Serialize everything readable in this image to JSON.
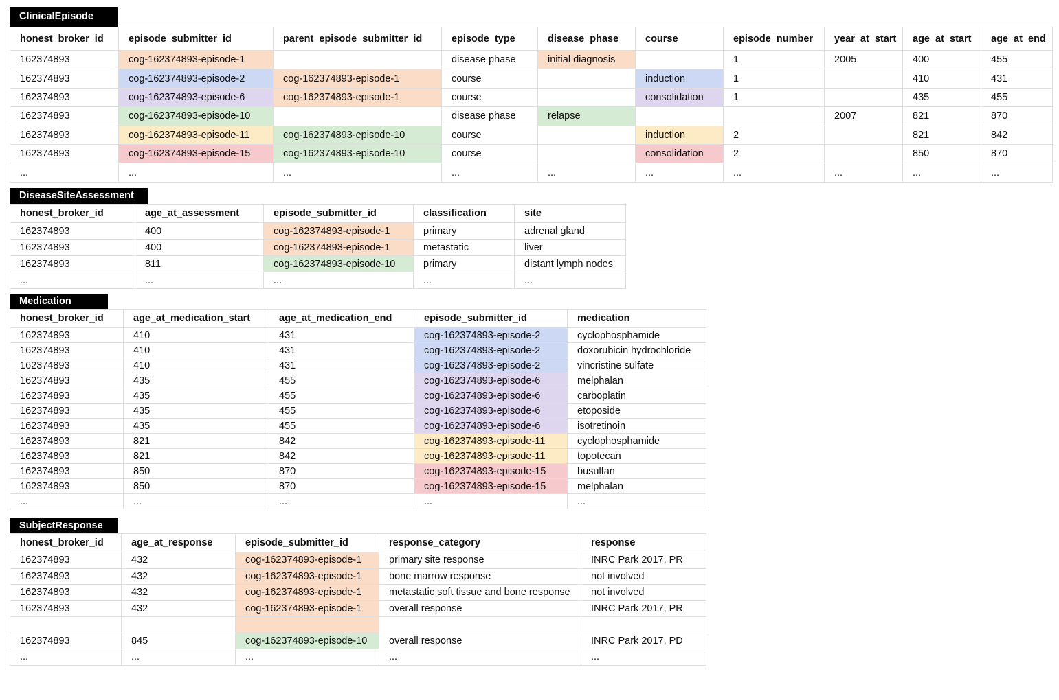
{
  "colors": {
    "orange": "#fbdcc6",
    "blue": "#cdd9f4",
    "purple": "#ddd6ee",
    "green": "#d6ebd3",
    "yellow": "#fcebc5",
    "red": "#f6cacc"
  },
  "tables": [
    {
      "name": "ClinicalEpisode",
      "columns": [
        "honest_broker_id",
        "episode_submitter_id",
        "parent_episode_submitter_id",
        "episode_type",
        "disease_phase",
        "course",
        "episode_number",
        "year_at_start",
        "age_at_start",
        "age_at_end"
      ],
      "rows": [
        [
          "162374893",
          "cog-162374893-episode-1",
          "",
          "disease phase",
          "initial diagnosis",
          "",
          "1",
          "2005",
          "400",
          "455"
        ],
        [
          "162374893",
          "cog-162374893-episode-2",
          "cog-162374893-episode-1",
          "course",
          "",
          "induction",
          "1",
          "",
          "410",
          "431"
        ],
        [
          "162374893",
          "cog-162374893-episode-6",
          "cog-162374893-episode-1",
          "course",
          "",
          "consolidation",
          "1",
          "",
          "435",
          "455"
        ],
        [
          "162374893",
          "cog-162374893-episode-10",
          "",
          "disease phase",
          "relapse",
          "",
          "",
          "2007",
          "821",
          "870"
        ],
        [
          "162374893",
          "cog-162374893-episode-11",
          "cog-162374893-episode-10",
          "course",
          "",
          "induction",
          "2",
          "",
          "821",
          "842"
        ],
        [
          "162374893",
          "cog-162374893-episode-15",
          "cog-162374893-episode-10",
          "course",
          "",
          "consolidation",
          "2",
          "",
          "850",
          "870"
        ],
        [
          "...",
          "...",
          "...",
          "...",
          "...",
          "...",
          "...",
          "...",
          "...",
          "..."
        ]
      ],
      "highlights": [
        [
          "",
          "orange",
          "",
          "",
          "orange",
          "",
          "",
          "",
          "",
          ""
        ],
        [
          "",
          "blue",
          "orange",
          "",
          "",
          "blue",
          "",
          "",
          "",
          ""
        ],
        [
          "",
          "purple",
          "orange",
          "",
          "",
          "purple",
          "",
          "",
          "",
          ""
        ],
        [
          "",
          "green",
          "",
          "",
          "green",
          "",
          "",
          "",
          "",
          ""
        ],
        [
          "",
          "yellow",
          "green",
          "",
          "",
          "yellow",
          "",
          "",
          "",
          ""
        ],
        [
          "",
          "red",
          "green",
          "",
          "",
          "red",
          "",
          "",
          "",
          ""
        ],
        [
          "",
          "",
          "",
          "",
          "",
          "",
          "",
          "",
          "",
          ""
        ]
      ]
    },
    {
      "name": "DiseaseSiteAssessment",
      "columns": [
        "honest_broker_id",
        "age_at_assessment",
        "episode_submitter_id",
        "classification",
        "site"
      ],
      "rows": [
        [
          "162374893",
          "400",
          "cog-162374893-episode-1",
          "primary",
          "adrenal gland"
        ],
        [
          "162374893",
          "400",
          "cog-162374893-episode-1",
          "metastatic",
          "liver"
        ],
        [
          "162374893",
          "811",
          "cog-162374893-episode-10",
          "primary",
          "distant lymph nodes"
        ],
        [
          "...",
          "...",
          "...",
          "...",
          "..."
        ]
      ],
      "highlights": [
        [
          "",
          "",
          "orange",
          "",
          ""
        ],
        [
          "",
          "",
          "orange",
          "",
          ""
        ],
        [
          "",
          "",
          "green",
          "",
          ""
        ],
        [
          "",
          "",
          "",
          "",
          ""
        ]
      ]
    },
    {
      "name": "Medication",
      "columns": [
        "honest_broker_id",
        "age_at_medication_start",
        "age_at_medication_end",
        "episode_submitter_id",
        "medication"
      ],
      "rows": [
        [
          "162374893",
          "410",
          "431",
          "cog-162374893-episode-2",
          "cyclophosphamide"
        ],
        [
          "162374893",
          "410",
          "431",
          "cog-162374893-episode-2",
          "doxorubicin hydrochloride"
        ],
        [
          "162374893",
          "410",
          "431",
          "cog-162374893-episode-2",
          "vincristine sulfate"
        ],
        [
          "162374893",
          "435",
          "455",
          "cog-162374893-episode-6",
          "melphalan"
        ],
        [
          "162374893",
          "435",
          "455",
          "cog-162374893-episode-6",
          "carboplatin"
        ],
        [
          "162374893",
          "435",
          "455",
          "cog-162374893-episode-6",
          "etoposide"
        ],
        [
          "162374893",
          "435",
          "455",
          "cog-162374893-episode-6",
          "isotretinoin"
        ],
        [
          "162374893",
          "821",
          "842",
          "cog-162374893-episode-11",
          "cyclophosphamide"
        ],
        [
          "162374893",
          "821",
          "842",
          "cog-162374893-episode-11",
          "topotecan"
        ],
        [
          "162374893",
          "850",
          "870",
          "cog-162374893-episode-15",
          "busulfan"
        ],
        [
          "162374893",
          "850",
          "870",
          "cog-162374893-episode-15",
          "melphalan"
        ],
        [
          "...",
          "...",
          "...",
          "...",
          "..."
        ]
      ],
      "highlights": [
        [
          "",
          "",
          "",
          "blue",
          ""
        ],
        [
          "",
          "",
          "",
          "blue",
          ""
        ],
        [
          "",
          "",
          "",
          "blue",
          ""
        ],
        [
          "",
          "",
          "",
          "purple",
          ""
        ],
        [
          "",
          "",
          "",
          "purple",
          ""
        ],
        [
          "",
          "",
          "",
          "purple",
          ""
        ],
        [
          "",
          "",
          "",
          "purple",
          ""
        ],
        [
          "",
          "",
          "",
          "yellow",
          ""
        ],
        [
          "",
          "",
          "",
          "yellow",
          ""
        ],
        [
          "",
          "",
          "",
          "red",
          ""
        ],
        [
          "",
          "",
          "",
          "red",
          ""
        ],
        [
          "",
          "",
          "",
          "",
          ""
        ]
      ]
    },
    {
      "name": "SubjectResponse",
      "columns": [
        "honest_broker_id",
        "age_at_response",
        "episode_submitter_id",
        "response_category",
        "response"
      ],
      "rows": [
        [
          "162374893",
          "432",
          "cog-162374893-episode-1",
          "primary site response",
          "INRC Park 2017, PR"
        ],
        [
          "162374893",
          "432",
          "cog-162374893-episode-1",
          "bone marrow response",
          "not involved"
        ],
        [
          "162374893",
          "432",
          "cog-162374893-episode-1",
          "metastatic soft tissue and bone response",
          "not involved"
        ],
        [
          "162374893",
          "432",
          "cog-162374893-episode-1",
          "overall response",
          "INRC Park 2017, PR"
        ],
        [
          "",
          "",
          "",
          "",
          ""
        ],
        [
          "162374893",
          "845",
          "cog-162374893-episode-10",
          "overall response",
          "INRC Park 2017, PD"
        ],
        [
          "...",
          "...",
          "...",
          "...",
          "..."
        ]
      ],
      "highlights": [
        [
          "",
          "",
          "orange",
          "",
          ""
        ],
        [
          "",
          "",
          "orange",
          "",
          ""
        ],
        [
          "",
          "",
          "orange",
          "",
          ""
        ],
        [
          "",
          "",
          "orange",
          "",
          ""
        ],
        [
          "",
          "",
          "orange",
          "",
          ""
        ],
        [
          "",
          "",
          "green",
          "",
          ""
        ],
        [
          "",
          "",
          "",
          "",
          ""
        ]
      ]
    }
  ]
}
